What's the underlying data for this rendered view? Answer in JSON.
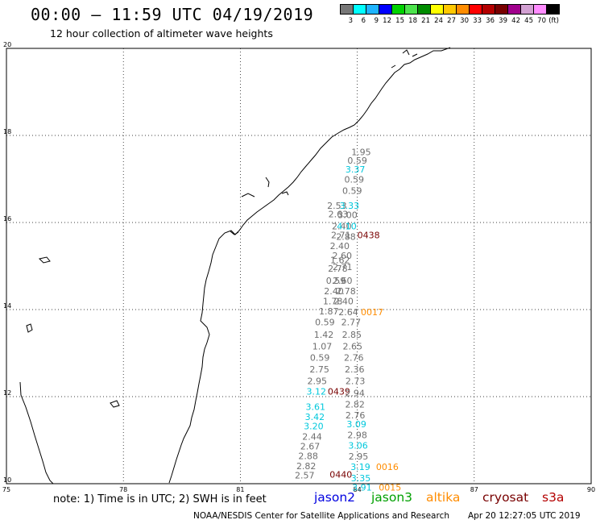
{
  "header": {
    "title": "00:00 – 11:59 UTC 04/19/2019",
    "subtitle": "12 hour collection of altimeter wave heights"
  },
  "colorbar": {
    "colors": [
      "#777777",
      "#00ffff",
      "#1eb4ff",
      "#0000ff",
      "#00d200",
      "#4ce44c",
      "#008c00",
      "#ffff00",
      "#ffc800",
      "#ff8c00",
      "#ff0000",
      "#b40000",
      "#780000",
      "#a0008c",
      "#d2a0d2",
      "#ff8cff",
      "#000000"
    ],
    "labels": [
      "3",
      "6",
      "9",
      "12",
      "15",
      "18",
      "21",
      "24",
      "27",
      "30",
      "33",
      "36",
      "39",
      "42",
      "45",
      "70",
      "(ft)"
    ]
  },
  "map": {
    "lon_range": [
      75,
      90
    ],
    "lat_range": [
      10,
      20
    ],
    "lon_ticks": [
      75,
      78,
      81,
      84,
      87,
      90
    ],
    "lat_ticks": [
      10,
      12,
      14,
      16,
      18,
      20
    ],
    "gridlines": "dotted"
  },
  "satellite_colors": {
    "jason2": "#0000e0",
    "jason3": "#00a000",
    "altika": "#ff8c00",
    "cryosat": "#780000",
    "s3a": "#b40000",
    "gray": "#6e6e6e",
    "cyan": "#00c8dc"
  },
  "observations": [
    {
      "lon": 84.1,
      "lat": 17.62,
      "text": "1.95",
      "color": "gray"
    },
    {
      "lon": 84.0,
      "lat": 17.43,
      "text": "0.59",
      "color": "gray"
    },
    {
      "lon": 83.95,
      "lat": 17.22,
      "text": "3.37",
      "color": "cyan"
    },
    {
      "lon": 83.92,
      "lat": 16.99,
      "text": "0.59",
      "color": "gray"
    },
    {
      "lon": 83.87,
      "lat": 16.73,
      "text": "0.59",
      "color": "gray"
    },
    {
      "lon": 83.48,
      "lat": 16.39,
      "text": "2.53",
      "color": "gray"
    },
    {
      "lon": 83.8,
      "lat": 16.39,
      "text": "3.33",
      "color": "cyan"
    },
    {
      "lon": 83.51,
      "lat": 16.19,
      "text": "2.63",
      "color": "gray"
    },
    {
      "lon": 83.75,
      "lat": 16.18,
      "text": "3.00",
      "color": "gray"
    },
    {
      "lon": 83.6,
      "lat": 15.92,
      "text": "2.40",
      "color": "gray"
    },
    {
      "lon": 83.73,
      "lat": 15.92,
      "text": "4.10",
      "color": "cyan"
    },
    {
      "lon": 83.58,
      "lat": 15.71,
      "text": "2.71",
      "color": "gray"
    },
    {
      "lon": 83.71,
      "lat": 15.68,
      "text": "2.88",
      "color": "gray"
    },
    {
      "lon": 84.29,
      "lat": 15.71,
      "text": "0438",
      "color": "cryosat"
    },
    {
      "lon": 83.55,
      "lat": 15.46,
      "text": "2.40",
      "color": "gray"
    },
    {
      "lon": 83.61,
      "lat": 15.24,
      "text": "2.60",
      "color": "gray"
    },
    {
      "lon": 83.56,
      "lat": 15.14,
      "text": "1.62",
      "color": "gray"
    },
    {
      "lon": 83.62,
      "lat": 14.98,
      "text": "2.71",
      "color": "gray"
    },
    {
      "lon": 83.5,
      "lat": 14.94,
      "text": "2.78",
      "color": "gray"
    },
    {
      "lon": 83.45,
      "lat": 14.67,
      "text": "0.59",
      "color": "gray"
    },
    {
      "lon": 83.62,
      "lat": 14.67,
      "text": "2.60",
      "color": "gray"
    },
    {
      "lon": 83.4,
      "lat": 14.43,
      "text": "2.40",
      "color": "gray"
    },
    {
      "lon": 83.71,
      "lat": 14.43,
      "text": "2.78",
      "color": "gray"
    },
    {
      "lon": 83.37,
      "lat": 14.19,
      "text": "1.78",
      "color": "gray"
    },
    {
      "lon": 83.65,
      "lat": 14.19,
      "text": "2.40",
      "color": "gray"
    },
    {
      "lon": 83.27,
      "lat": 13.96,
      "text": "1.87",
      "color": "gray"
    },
    {
      "lon": 83.77,
      "lat": 13.94,
      "text": "2.64",
      "color": "gray"
    },
    {
      "lon": 84.38,
      "lat": 13.94,
      "text": "0017",
      "color": "altika"
    },
    {
      "lon": 83.17,
      "lat": 13.71,
      "text": "0.59",
      "color": "gray"
    },
    {
      "lon": 83.84,
      "lat": 13.71,
      "text": "2.77",
      "color": "gray"
    },
    {
      "lon": 83.14,
      "lat": 13.43,
      "text": "1.42",
      "color": "gray"
    },
    {
      "lon": 83.86,
      "lat": 13.43,
      "text": "2.85",
      "color": "gray"
    },
    {
      "lon": 83.1,
      "lat": 13.16,
      "text": "1.07",
      "color": "gray"
    },
    {
      "lon": 83.88,
      "lat": 13.16,
      "text": "2.65",
      "color": "gray"
    },
    {
      "lon": 83.04,
      "lat": 12.9,
      "text": "0.59",
      "color": "gray"
    },
    {
      "lon": 83.91,
      "lat": 12.9,
      "text": "2.76",
      "color": "gray"
    },
    {
      "lon": 83.03,
      "lat": 12.63,
      "text": "2.75",
      "color": "gray"
    },
    {
      "lon": 83.93,
      "lat": 12.63,
      "text": "2.36",
      "color": "gray"
    },
    {
      "lon": 82.97,
      "lat": 12.36,
      "text": "2.95",
      "color": "gray"
    },
    {
      "lon": 83.95,
      "lat": 12.36,
      "text": "2.73",
      "color": "gray"
    },
    {
      "lon": 82.95,
      "lat": 12.12,
      "text": "3.12",
      "color": "cyan"
    },
    {
      "lon": 83.53,
      "lat": 12.12,
      "text": "0439",
      "color": "cryosat"
    },
    {
      "lon": 83.94,
      "lat": 12.08,
      "text": "2.94",
      "color": "gray"
    },
    {
      "lon": 83.94,
      "lat": 11.82,
      "text": "2.82",
      "color": "gray"
    },
    {
      "lon": 82.93,
      "lat": 11.77,
      "text": "3.61",
      "color": "cyan"
    },
    {
      "lon": 83.95,
      "lat": 11.57,
      "text": "2.76",
      "color": "gray"
    },
    {
      "lon": 82.91,
      "lat": 11.54,
      "text": "3.42",
      "color": "cyan"
    },
    {
      "lon": 83.98,
      "lat": 11.37,
      "text": "3.09",
      "color": "cyan"
    },
    {
      "lon": 82.88,
      "lat": 11.32,
      "text": "3.20",
      "color": "cyan"
    },
    {
      "lon": 84.0,
      "lat": 11.12,
      "text": "2.98",
      "color": "gray"
    },
    {
      "lon": 82.84,
      "lat": 11.08,
      "text": "2.44",
      "color": "gray"
    },
    {
      "lon": 84.02,
      "lat": 10.88,
      "text": "3.06",
      "color": "cyan"
    },
    {
      "lon": 82.79,
      "lat": 10.86,
      "text": "2.67",
      "color": "gray"
    },
    {
      "lon": 84.03,
      "lat": 10.63,
      "text": "2.95",
      "color": "gray"
    },
    {
      "lon": 82.74,
      "lat": 10.64,
      "text": "2.88",
      "color": "gray"
    },
    {
      "lon": 84.08,
      "lat": 10.39,
      "text": "3.19",
      "color": "cyan"
    },
    {
      "lon": 84.77,
      "lat": 10.39,
      "text": "0016",
      "color": "altika"
    },
    {
      "lon": 82.69,
      "lat": 10.41,
      "text": "2.82",
      "color": "gray"
    },
    {
      "lon": 83.58,
      "lat": 10.21,
      "text": "0440",
      "color": "cryosat"
    },
    {
      "lon": 82.65,
      "lat": 10.19,
      "text": "2.57",
      "color": "gray"
    },
    {
      "lon": 84.09,
      "lat": 10.13,
      "text": "3.35",
      "color": "cyan"
    },
    {
      "lon": 84.12,
      "lat": 9.92,
      "text": "3.91",
      "color": "cyan"
    },
    {
      "lon": 84.84,
      "lat": 9.92,
      "text": "0015",
      "color": "altika"
    }
  ],
  "footer": {
    "note": "note: 1) Time is in UTC; 2) SWH is in feet",
    "legend": [
      {
        "key": "jason2",
        "label": "jason2"
      },
      {
        "key": "jason3",
        "label": "jason3"
      },
      {
        "key": "altika",
        "label": "altika"
      },
      {
        "key": "cryosat",
        "label": "cryosat"
      },
      {
        "key": "s3a",
        "label": "s3a"
      }
    ],
    "credit": "NOAA/NESDIS Center for Satellite Applications and Research",
    "timestamp": "Apr 20 12:27:05 UTC 2019"
  }
}
